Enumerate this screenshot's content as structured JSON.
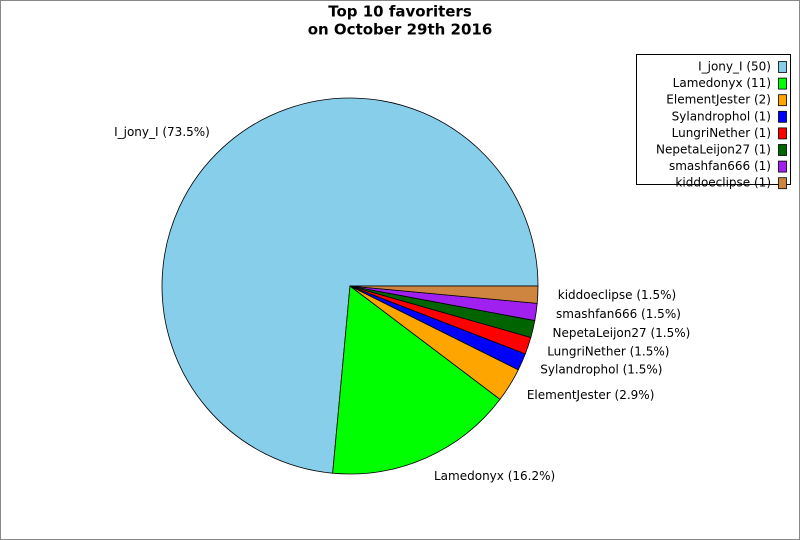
{
  "chart_data": {
    "type": "pie",
    "title": [
      "Top 10 favoriters",
      "on October 29th 2016"
    ],
    "categories": [
      "I_jony_I (50)",
      "Lamedonyx (11)",
      "ElementJester (2)",
      "Sylandrophol (1)",
      "LungriNether (1)",
      "NepetaLeijon27 (1)",
      "smashfan666 (1)",
      "kiddoeclipse (1)"
    ],
    "values": [
      50,
      11,
      2,
      1,
      1,
      1,
      1,
      1
    ],
    "value_labels": [
      "I_jony_I (73.5%)",
      "Lamedonyx (16.2%)",
      "ElementJester (2.9%)",
      "Sylandrophol (1.5%)",
      "LungriNether (1.5%)",
      "NepetaLeijon27 (1.5%)",
      "smashfan666 (1.5%)",
      "kiddoeclipse (1.5%)"
    ],
    "colors": [
      "#87ceeb",
      "#00ff00",
      "#ffa500",
      "#0000ff",
      "#ff0000",
      "#006400",
      "#a020f0",
      "#cd853f"
    ],
    "legend": "upper right"
  }
}
